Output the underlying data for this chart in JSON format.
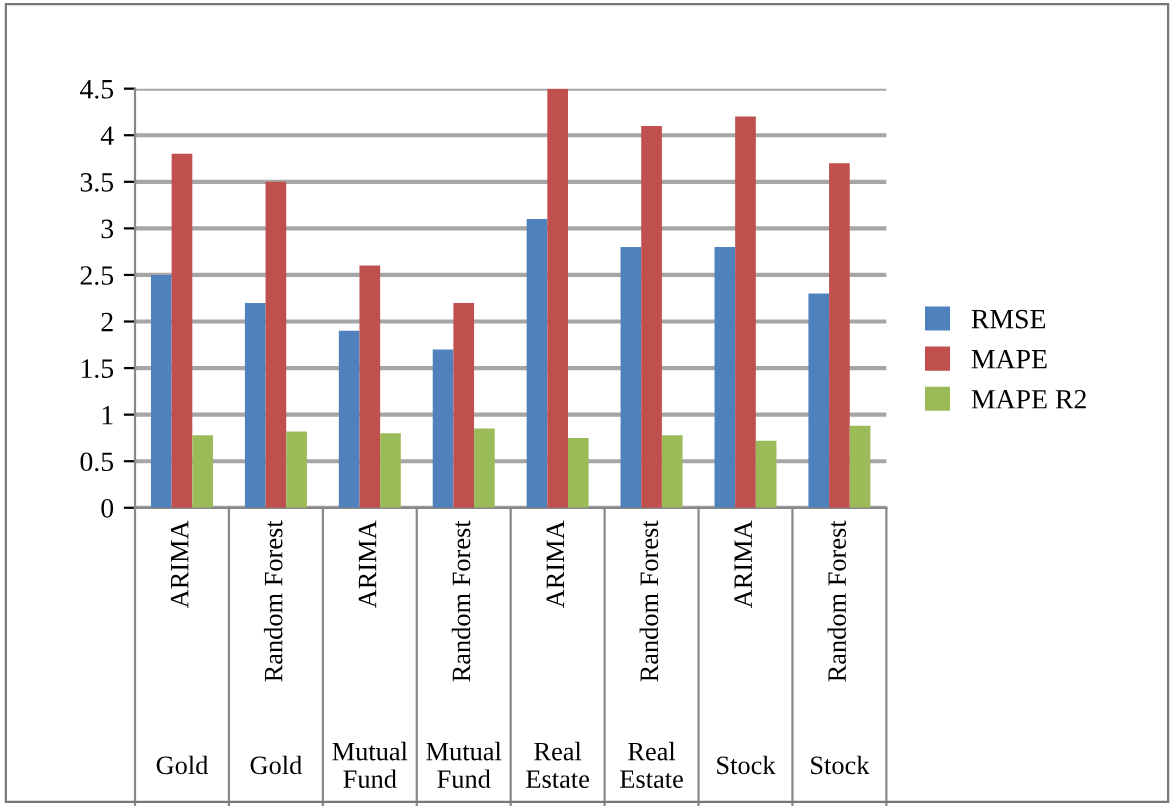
{
  "chart_data": {
    "type": "bar",
    "categories": [
      "ARIMA\nGold",
      "Random Forest\nGold",
      "ARIMA\nMutual\nFund",
      "Random Forest\nMutual\nFund",
      "ARIMA\nReal\nEstate",
      "Random Forest\nReal\nEstate",
      "ARIMA\nStock",
      "Random Forest\nStock"
    ],
    "series": [
      {
        "name": "RMSE",
        "color": "#4f81bd",
        "values": [
          2.5,
          2.2,
          1.9,
          1.7,
          3.1,
          2.8,
          2.8,
          2.3
        ]
      },
      {
        "name": "MAPE",
        "color": "#c0504d",
        "values": [
          3.8,
          3.5,
          2.6,
          2.2,
          4.5,
          4.1,
          4.2,
          3.7
        ]
      },
      {
        "name": "MAPE R2",
        "color": "#9bbb59",
        "values": [
          0.78,
          0.82,
          0.8,
          0.85,
          0.75,
          0.78,
          0.72,
          0.88
        ]
      }
    ],
    "ylim": [
      0,
      4.5
    ],
    "yticks": [
      0,
      0.5,
      1,
      1.5,
      2,
      2.5,
      3,
      3.5,
      4,
      4.5
    ],
    "grid": "y",
    "legend": "right"
  }
}
